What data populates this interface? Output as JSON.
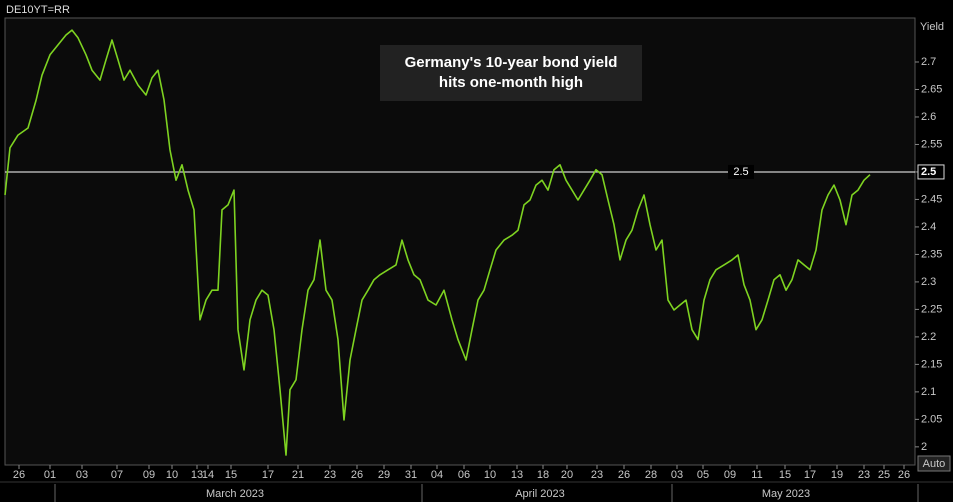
{
  "chart_data": {
    "type": "line",
    "title": "DE10YT=RR",
    "y_label": "Yield",
    "annotation": [
      "Germany's 10-year bond yield",
      "hits one-month high"
    ],
    "reference_line": 2.5,
    "axis_button": "Auto",
    "x_groups": [
      "March 2023",
      "April 2023",
      "May 2023"
    ],
    "x": [
      0,
      0.5,
      1.3,
      2.3,
      3.1,
      3.7,
      4.5,
      5.3,
      6.1,
      6.7,
      7.3,
      8.1,
      8.7,
      9.5,
      10.1,
      10.7,
      11.3,
      11.9,
      12.5,
      13.3,
      14.1,
      14.7,
      15.3,
      15.9,
      16.5,
      17.1,
      17.7,
      18.3,
      18.9,
      19.5,
      20.1,
      20.7,
      21.3,
      21.7,
      22.3,
      22.9,
      23.3,
      23.9,
      24.5,
      25.1,
      25.7,
      26.3,
      26.9,
      27.5,
      28.1,
      28.5,
      29.1,
      29.7,
      30.3,
      30.9,
      31.5,
      32.1,
      32.7,
      33.3,
      33.9,
      34.5,
      35.1,
      35.7,
      36.3,
      36.9,
      37.5,
      38.3,
      39.1,
      39.7,
      40.3,
      40.9,
      41.5,
      42.3,
      43.1,
      43.9,
      44.7,
      45.3,
      46.1,
      46.7,
      47.3,
      47.9,
      48.5,
      49.1,
      49.9,
      50.7,
      51.3,
      51.9,
      52.5,
      53.1,
      53.7,
      54.3,
      54.9,
      55.5,
      56.1,
      56.7,
      57.3,
      57.9,
      58.5,
      59.1,
      59.7,
      60.3,
      60.9,
      61.5,
      62.1,
      62.7,
      63.3,
      63.9,
      64.5,
      65.1,
      65.7,
      66.3,
      66.9,
      67.5,
      68.1,
      68.7,
      69.3,
      69.9,
      70.5,
      71.1,
      71.9,
      72.7,
      73.3,
      73.9,
      74.5,
      75.1,
      75.7,
      76.3,
      76.9,
      77.5,
      78.1,
      78.7,
      79.3,
      79.9,
      80.5,
      81.1,
      81.7,
      82.3,
      82.9,
      83.5,
      84.1,
      84.7,
      85.3,
      85.9,
      86.5
    ],
    "series": [
      {
        "color": "#7ed321",
        "values": [
          2.458,
          2.544,
          2.567,
          2.58,
          2.63,
          2.676,
          2.713,
          2.731,
          2.749,
          2.758,
          2.744,
          2.713,
          2.685,
          2.667,
          2.704,
          2.74,
          2.704,
          2.667,
          2.685,
          2.658,
          2.64,
          2.671,
          2.685,
          2.631,
          2.54,
          2.485,
          2.513,
          2.467,
          2.431,
          2.231,
          2.267,
          2.285,
          2.285,
          2.431,
          2.44,
          2.467,
          2.213,
          2.14,
          2.231,
          2.267,
          2.285,
          2.276,
          2.213,
          2.104,
          1.985,
          2.104,
          2.122,
          2.213,
          2.285,
          2.304,
          2.376,
          2.285,
          2.267,
          2.195,
          2.049,
          2.158,
          2.213,
          2.267,
          2.285,
          2.304,
          2.313,
          2.322,
          2.331,
          2.376,
          2.34,
          2.313,
          2.304,
          2.267,
          2.258,
          2.285,
          2.231,
          2.195,
          2.158,
          2.213,
          2.267,
          2.285,
          2.322,
          2.358,
          2.376,
          2.385,
          2.394,
          2.44,
          2.449,
          2.476,
          2.485,
          2.467,
          2.504,
          2.513,
          2.485,
          2.467,
          2.449,
          2.467,
          2.485,
          2.504,
          2.495,
          2.449,
          2.404,
          2.34,
          2.376,
          2.394,
          2.431,
          2.458,
          2.404,
          2.358,
          2.376,
          2.267,
          2.249,
          2.258,
          2.267,
          2.213,
          2.195,
          2.267,
          2.304,
          2.322,
          2.331,
          2.34,
          2.349,
          2.295,
          2.267,
          2.213,
          2.231,
          2.267,
          2.304,
          2.313,
          2.285,
          2.304,
          2.34,
          2.331,
          2.322,
          2.358,
          2.431,
          2.458,
          2.476,
          2.449,
          2.404,
          2.458,
          2.467,
          2.485,
          2.495
        ]
      }
    ],
    "xlim": [
      0,
      91
    ],
    "xticks": [
      {
        "value": 1.4,
        "label": "26"
      },
      {
        "value": 4.5,
        "label": "01"
      },
      {
        "value": 7.7,
        "label": "03"
      },
      {
        "value": 11.2,
        "label": "07"
      },
      {
        "value": 14.4,
        "label": "09"
      },
      {
        "value": 16.7,
        "label": "10"
      },
      {
        "value": 19.2,
        "label": "13"
      },
      {
        "value": 20.3,
        "label": "14"
      },
      {
        "value": 22.6,
        "label": "15"
      },
      {
        "value": 26.3,
        "label": "17"
      },
      {
        "value": 29.3,
        "label": "21"
      },
      {
        "value": 32.5,
        "label": "23"
      },
      {
        "value": 35.2,
        "label": "26"
      },
      {
        "value": 37.9,
        "label": "29"
      },
      {
        "value": 40.6,
        "label": "31"
      },
      {
        "value": 43.2,
        "label": "04"
      },
      {
        "value": 45.9,
        "label": "06"
      },
      {
        "value": 48.5,
        "label": "10"
      },
      {
        "value": 51.2,
        "label": "13"
      },
      {
        "value": 53.8,
        "label": "18"
      },
      {
        "value": 56.2,
        "label": "20"
      },
      {
        "value": 59.2,
        "label": "23"
      },
      {
        "value": 61.9,
        "label": "26"
      },
      {
        "value": 64.6,
        "label": "28"
      },
      {
        "value": 67.2,
        "label": "03"
      },
      {
        "value": 69.8,
        "label": "05"
      },
      {
        "value": 72.5,
        "label": "09"
      },
      {
        "value": 75.2,
        "label": "11"
      },
      {
        "value": 78.0,
        "label": "15"
      },
      {
        "value": 80.5,
        "label": "17"
      },
      {
        "value": 83.2,
        "label": "19"
      },
      {
        "value": 85.9,
        "label": "23"
      },
      {
        "value": 87.9,
        "label": "25"
      },
      {
        "value": 89.9,
        "label": "26"
      }
    ],
    "ylim": [
      1.967,
      2.78
    ],
    "yticks": [
      2,
      2.05,
      2.1,
      2.15,
      2.2,
      2.25,
      2.3,
      2.35,
      2.4,
      2.45,
      2.5,
      2.55,
      2.6,
      2.65,
      2.7
    ],
    "highlight_tick": 2.5
  }
}
